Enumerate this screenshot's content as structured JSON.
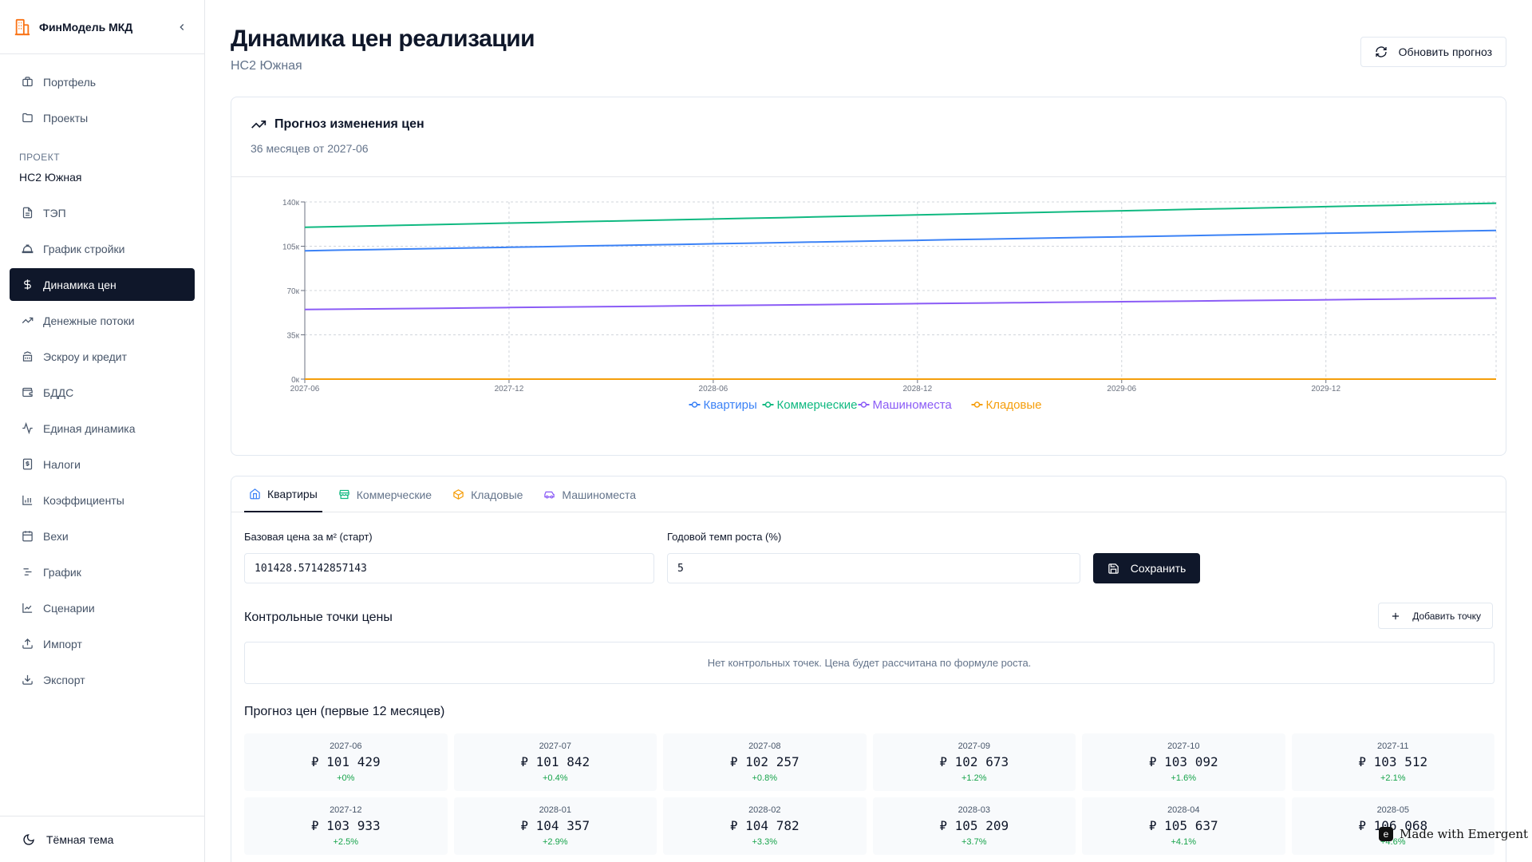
{
  "brand": {
    "title": "ФинМодель МКД"
  },
  "nav_top": [
    {
      "label": "Портфель",
      "icon": "briefcase-icon"
    },
    {
      "label": "Проекты",
      "icon": "folder-icon"
    }
  ],
  "project_section": {
    "label": "ПРОЕКТ",
    "name": "НС2 Южная"
  },
  "nav_project": [
    {
      "label": "ТЭП",
      "icon": "file-icon"
    },
    {
      "label": "График стройки",
      "icon": "helmet-icon"
    },
    {
      "label": "Динамика цен",
      "icon": "dollar-icon",
      "active": true
    },
    {
      "label": "Денежные потоки",
      "icon": "trending-up-icon"
    },
    {
      "label": "Эскроу и кредит",
      "icon": "bank-icon"
    },
    {
      "label": "БДДС",
      "icon": "wallet-icon"
    },
    {
      "label": "Единая динамика",
      "icon": "activity-icon"
    },
    {
      "label": "Налоги",
      "icon": "receipt-icon"
    },
    {
      "label": "Коэффициенты",
      "icon": "bar-chart-icon"
    },
    {
      "label": "Вехи",
      "icon": "calendar-icon"
    },
    {
      "label": "График",
      "icon": "gantt-icon"
    },
    {
      "label": "Сценарии",
      "icon": "line-chart-icon"
    },
    {
      "label": "Импорт",
      "icon": "upload-icon"
    },
    {
      "label": "Экспорт",
      "icon": "download-icon"
    }
  ],
  "footer": {
    "theme_label": "Тёмная тема"
  },
  "header": {
    "title": "Динамика цен реализации",
    "subtitle": "НС2 Южная",
    "refresh_label": "Обновить прогноз"
  },
  "chart_card": {
    "title": "Прогноз изменения цен",
    "subtitle": "36 месяцев от 2027-06"
  },
  "chart_data": {
    "type": "line",
    "x_ticks": [
      "2027-06",
      "2027-12",
      "2028-06",
      "2028-12",
      "2029-06",
      "2029-12"
    ],
    "x_months": 36,
    "y_ticks": [
      "0к",
      "35к",
      "70к",
      "105к",
      "140к"
    ],
    "ylim": [
      0,
      140000
    ],
    "grid": true,
    "legend_position": "bottom",
    "series": [
      {
        "name": "Квартиры",
        "color": "#3b82f6",
        "start": 101429,
        "end": 117500
      },
      {
        "name": "Коммерческие",
        "color": "#10b981",
        "start": 120000,
        "end": 139000
      },
      {
        "name": "Машиноместа",
        "color": "#8b5cf6",
        "start": 55000,
        "end": 64000
      },
      {
        "name": "Кладовые",
        "color": "#f59e0b",
        "start": 0,
        "end": 0
      }
    ]
  },
  "tabs": [
    {
      "label": "Квартиры",
      "icon": "home-icon",
      "color": "#3b82f6",
      "active": true
    },
    {
      "label": "Коммерческие",
      "icon": "store-icon",
      "color": "#10b981"
    },
    {
      "label": "Кладовые",
      "icon": "box-icon",
      "color": "#f59e0b"
    },
    {
      "label": "Машиноместа",
      "icon": "car-icon",
      "color": "#8b5cf6"
    }
  ],
  "form": {
    "base_price_label": "Базовая цена за м² (старт)",
    "base_price_value": "101428.57142857143",
    "growth_label": "Годовой темп роста (%)",
    "growth_value": "5",
    "save_label": "Сохранить"
  },
  "control_points": {
    "title": "Контрольные точки цены",
    "add_label": "Добавить точку",
    "empty_text": "Нет контрольных точек. Цена будет рассчитана по формуле роста."
  },
  "forecast": {
    "title": "Прогноз цен (первые 12 месяцев)",
    "items": [
      {
        "month": "2027-06",
        "price": "₽ 101 429",
        "change": "+0%"
      },
      {
        "month": "2027-07",
        "price": "₽ 101 842",
        "change": "+0.4%"
      },
      {
        "month": "2027-08",
        "price": "₽ 102 257",
        "change": "+0.8%"
      },
      {
        "month": "2027-09",
        "price": "₽ 102 673",
        "change": "+1.2%"
      },
      {
        "month": "2027-10",
        "price": "₽ 103 092",
        "change": "+1.6%"
      },
      {
        "month": "2027-11",
        "price": "₽ 103 512",
        "change": "+2.1%"
      },
      {
        "month": "2027-12",
        "price": "₽ 103 933",
        "change": "+2.5%"
      },
      {
        "month": "2028-01",
        "price": "₽ 104 357",
        "change": "+2.9%"
      },
      {
        "month": "2028-02",
        "price": "₽ 104 782",
        "change": "+3.3%"
      },
      {
        "month": "2028-03",
        "price": "₽ 105 209",
        "change": "+3.7%"
      },
      {
        "month": "2028-04",
        "price": "₽ 105 637",
        "change": "+4.1%"
      },
      {
        "month": "2028-05",
        "price": "₽ 106 068",
        "change": "+4.6%"
      }
    ]
  },
  "badge": {
    "text": "Made with Emergent"
  }
}
